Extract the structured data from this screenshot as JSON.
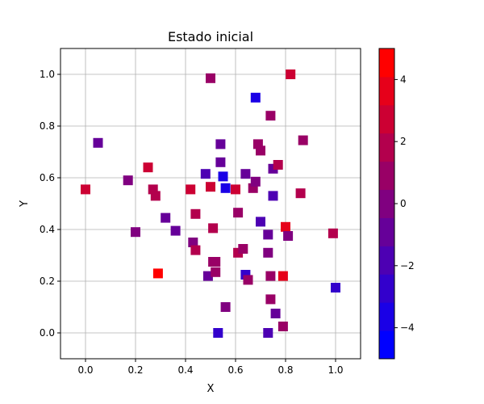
{
  "chart_data": {
    "type": "scatter",
    "title": "Estado inicial",
    "xlabel": "X",
    "ylabel": "Y",
    "xlim": [
      -0.1,
      1.1
    ],
    "ylim": [
      -0.1,
      1.1
    ],
    "grid": true,
    "marker": "square",
    "x_ticks": [
      0.0,
      0.2,
      0.4,
      0.6,
      0.8,
      1.0
    ],
    "x_tick_labels": [
      "0.0",
      "0.2",
      "0.4",
      "0.6",
      "0.8",
      "1.0"
    ],
    "y_ticks": [
      0.0,
      0.2,
      0.4,
      0.6,
      0.8,
      1.0
    ],
    "y_tick_labels": [
      "0.0",
      "0.2",
      "0.4",
      "0.6",
      "0.8",
      "1.0"
    ],
    "colorbar": {
      "min": -5,
      "max": 5,
      "ticks": [
        -4,
        -2,
        0,
        2,
        4
      ],
      "tick_labels": [
        "−4",
        "−2",
        "0",
        "2",
        "4"
      ],
      "color_low": "#0000ff",
      "color_high": "#ff0000",
      "levels": 11
    },
    "points": [
      {
        "x": 0.0,
        "y": 0.555,
        "c": 3
      },
      {
        "x": 0.05,
        "y": 0.735,
        "c": -1
      },
      {
        "x": 0.17,
        "y": 0.59,
        "c": 0
      },
      {
        "x": 0.2,
        "y": 0.39,
        "c": 0
      },
      {
        "x": 0.25,
        "y": 0.64,
        "c": 3
      },
      {
        "x": 0.27,
        "y": 0.555,
        "c": 2
      },
      {
        "x": 0.28,
        "y": 0.53,
        "c": 2
      },
      {
        "x": 0.29,
        "y": 0.23,
        "c": 5
      },
      {
        "x": 0.32,
        "y": 0.445,
        "c": -1
      },
      {
        "x": 0.36,
        "y": 0.395,
        "c": -1
      },
      {
        "x": 0.42,
        "y": 0.555,
        "c": 3
      },
      {
        "x": 0.43,
        "y": 0.35,
        "c": 0
      },
      {
        "x": 0.44,
        "y": 0.32,
        "c": 2
      },
      {
        "x": 0.44,
        "y": 0.46,
        "c": 2
      },
      {
        "x": 0.48,
        "y": 0.615,
        "c": -2
      },
      {
        "x": 0.49,
        "y": 0.22,
        "c": -1
      },
      {
        "x": 0.5,
        "y": 0.985,
        "c": 1
      },
      {
        "x": 0.5,
        "y": 0.565,
        "c": 3
      },
      {
        "x": 0.51,
        "y": 0.405,
        "c": 2
      },
      {
        "x": 0.51,
        "y": 0.275,
        "c": 1
      },
      {
        "x": 0.52,
        "y": 0.275,
        "c": 1
      },
      {
        "x": 0.52,
        "y": 0.235,
        "c": 1
      },
      {
        "x": 0.53,
        "y": 0.0,
        "c": -3
      },
      {
        "x": 0.54,
        "y": 0.73,
        "c": -1
      },
      {
        "x": 0.54,
        "y": 0.66,
        "c": -1
      },
      {
        "x": 0.55,
        "y": 0.605,
        "c": -4
      },
      {
        "x": 0.56,
        "y": 0.56,
        "c": -4
      },
      {
        "x": 0.56,
        "y": 0.1,
        "c": 0
      },
      {
        "x": 0.6,
        "y": 0.555,
        "c": 3
      },
      {
        "x": 0.61,
        "y": 0.465,
        "c": 1
      },
      {
        "x": 0.61,
        "y": 0.31,
        "c": 2
      },
      {
        "x": 0.63,
        "y": 0.325,
        "c": 1
      },
      {
        "x": 0.64,
        "y": 0.615,
        "c": -1
      },
      {
        "x": 0.64,
        "y": 0.225,
        "c": -3
      },
      {
        "x": 0.65,
        "y": 0.205,
        "c": 1
      },
      {
        "x": 0.67,
        "y": 0.56,
        "c": 1
      },
      {
        "x": 0.68,
        "y": 0.91,
        "c": -4
      },
      {
        "x": 0.68,
        "y": 0.585,
        "c": 0
      },
      {
        "x": 0.69,
        "y": 0.73,
        "c": 1
      },
      {
        "x": 0.7,
        "y": 0.705,
        "c": 1
      },
      {
        "x": 0.7,
        "y": 0.43,
        "c": -2
      },
      {
        "x": 0.73,
        "y": 0.38,
        "c": -1
      },
      {
        "x": 0.73,
        "y": 0.31,
        "c": 0
      },
      {
        "x": 0.73,
        "y": 0.0,
        "c": -2
      },
      {
        "x": 0.74,
        "y": 0.84,
        "c": 1
      },
      {
        "x": 0.74,
        "y": 0.22,
        "c": 1
      },
      {
        "x": 0.74,
        "y": 0.13,
        "c": 1
      },
      {
        "x": 0.75,
        "y": 0.635,
        "c": -1
      },
      {
        "x": 0.75,
        "y": 0.53,
        "c": -2
      },
      {
        "x": 0.76,
        "y": 0.075,
        "c": -1
      },
      {
        "x": 0.77,
        "y": 0.65,
        "c": 2
      },
      {
        "x": 0.79,
        "y": 0.22,
        "c": 4
      },
      {
        "x": 0.79,
        "y": 0.025,
        "c": 1
      },
      {
        "x": 0.8,
        "y": 0.41,
        "c": 4
      },
      {
        "x": 0.81,
        "y": 0.375,
        "c": 0
      },
      {
        "x": 0.82,
        "y": 1.0,
        "c": 3
      },
      {
        "x": 0.86,
        "y": 0.54,
        "c": 2
      },
      {
        "x": 0.87,
        "y": 0.745,
        "c": 1
      },
      {
        "x": 0.99,
        "y": 0.385,
        "c": 2
      },
      {
        "x": 1.0,
        "y": 0.175,
        "c": -3
      }
    ]
  }
}
